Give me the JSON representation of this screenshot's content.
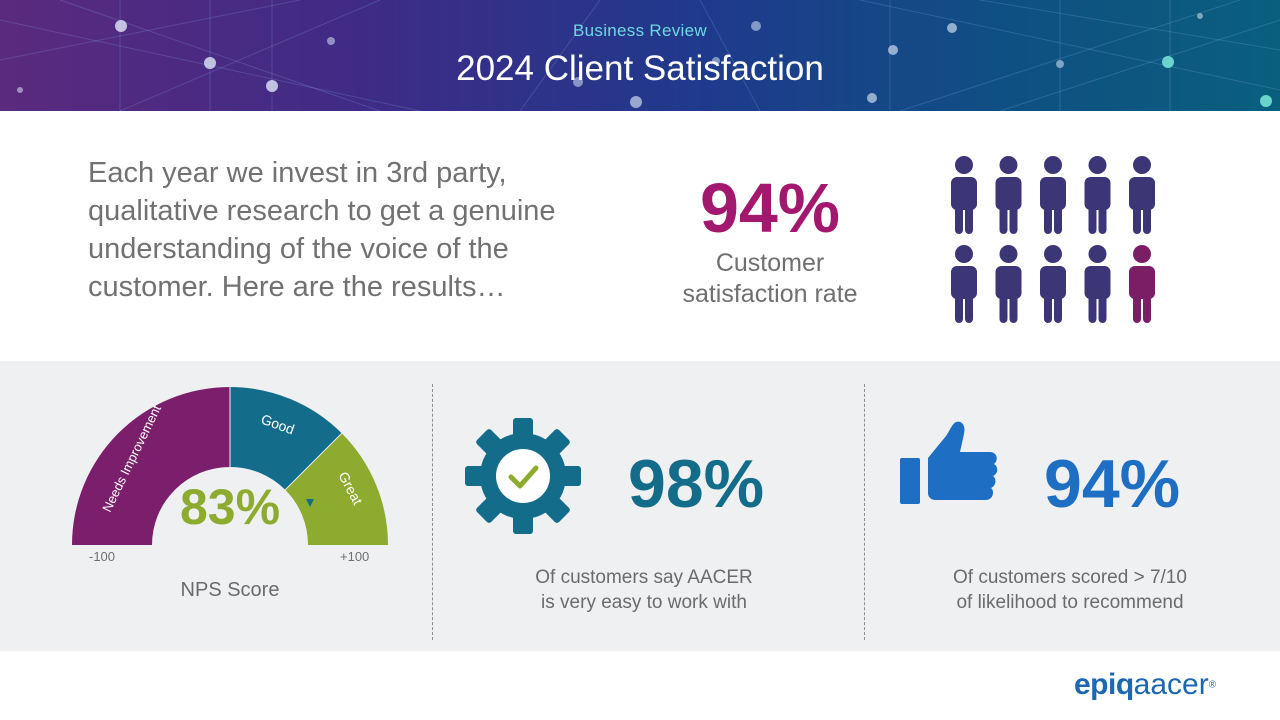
{
  "header": {
    "subtitle": "Business Review",
    "title": "2024 Client Satisfaction"
  },
  "intro": {
    "text": "Each year we invest in 3rd party, qualitative research to get a genuine understanding of the voice of the customer. Here are the results…"
  },
  "satisfaction": {
    "value": "94%",
    "label_line1": "Customer",
    "label_line2": "satisfaction rate",
    "people_total": 10,
    "people_highlighted": 9
  },
  "nps": {
    "value": "83%",
    "label": "NPS Score",
    "min_label": "-100",
    "max_label": "+100",
    "segments": [
      "Needs Improvement",
      "Good",
      "Great"
    ]
  },
  "ease": {
    "value": "98%",
    "caption_line1": "Of customers say AACER",
    "caption_line2": "is very easy to work with"
  },
  "recommend": {
    "value": "94%",
    "caption_line1": "Of customers scored > 7/10",
    "caption_line2": "of likelihood to recommend"
  },
  "logo": {
    "brand1": "epiq",
    "brand2": "aacer",
    "mark": "®"
  },
  "colors": {
    "magenta": "#a3186f",
    "people_main": "#3c3677",
    "people_highlight": "#7a1e66",
    "gauge_purple": "#7b1f6c",
    "gauge_teal": "#136d8a",
    "gauge_green": "#8cab2f",
    "blue": "#1e6fc4"
  }
}
